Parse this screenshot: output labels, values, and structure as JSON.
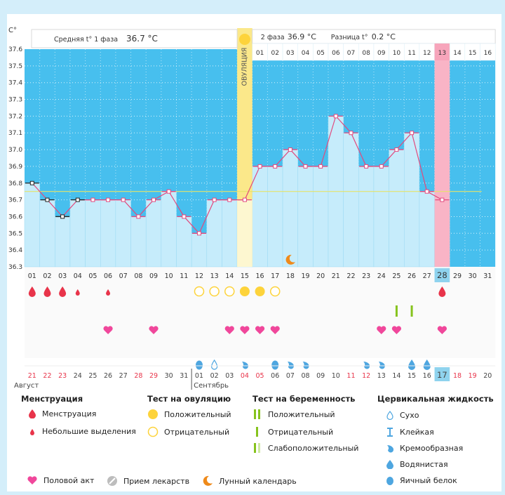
{
  "chart_data": {
    "type": "line",
    "y_unit_label": "C°",
    "ylim": [
      36.3,
      37.6
    ],
    "y_ticks": [
      "37.6",
      "37.5",
      "37.4",
      "37.3",
      "37.2",
      "37.1",
      "37.0",
      "36.9",
      "36.8",
      "36.7",
      "36.6",
      "36.5",
      "36.4",
      "36.3"
    ],
    "phase1_label": "Средняя t° 1 фаза",
    "phase1_value": "36.7 °C",
    "phase2_label": "2 фаза",
    "phase2_value": "36.9 °C",
    "diff_label": "Разница t°",
    "diff_value": "0.2 °C",
    "ovulation_label": "ОВУЛЯЦИЯ",
    "ovulation_day_index": 14,
    "coverline": 36.75,
    "cycle_days": [
      "01",
      "02",
      "03",
      "04",
      "05",
      "06",
      "07",
      "08",
      "09",
      "10",
      "11",
      "12",
      "13",
      "14",
      "15",
      "16",
      "17",
      "18",
      "19",
      "20",
      "21",
      "22",
      "23",
      "24",
      "25",
      "26",
      "27",
      "28",
      "29",
      "30",
      "31"
    ],
    "current_day_index": 27,
    "phase2_days": [
      "01",
      "02",
      "03",
      "04",
      "05",
      "06",
      "07",
      "08",
      "09",
      "10",
      "11",
      "12",
      "13",
      "14",
      "15",
      "16"
    ],
    "phase2_current_index": 12,
    "temperatures": [
      36.8,
      36.7,
      36.6,
      36.7,
      36.7,
      36.7,
      36.7,
      36.6,
      36.7,
      36.75,
      36.6,
      36.5,
      36.7,
      36.7,
      36.7,
      36.9,
      36.9,
      37.0,
      36.9,
      36.9,
      37.2,
      37.1,
      36.9,
      36.9,
      37.0,
      37.1,
      36.75,
      36.7
    ],
    "calendar_dates": [
      "21",
      "22",
      "23",
      "24",
      "25",
      "26",
      "27",
      "28",
      "29",
      "30",
      "31",
      "01",
      "02",
      "03",
      "04",
      "05",
      "06",
      "07",
      "08",
      "09",
      "10",
      "11",
      "12",
      "13",
      "14",
      "15",
      "16",
      "17",
      "18",
      "19",
      "20"
    ],
    "red_date_indices": [
      0,
      1,
      2,
      7,
      8,
      14,
      15,
      21,
      22,
      28,
      29
    ],
    "month1": "Август",
    "month2": "Сентябрь",
    "menstruation": [
      {
        "i": 0,
        "t": "full"
      },
      {
        "i": 1,
        "t": "full"
      },
      {
        "i": 2,
        "t": "full"
      },
      {
        "i": 3,
        "t": "light"
      },
      {
        "i": 5,
        "t": "light"
      },
      {
        "i": 27,
        "t": "full"
      }
    ],
    "ovulation_tests": [
      {
        "i": 11,
        "t": "negative"
      },
      {
        "i": 12,
        "t": "negative"
      },
      {
        "i": 13,
        "t": "negative"
      },
      {
        "i": 14,
        "t": "positive"
      },
      {
        "i": 15,
        "t": "positive"
      },
      {
        "i": 16,
        "t": "negative"
      }
    ],
    "pregnancy_tests": [
      {
        "i": 24,
        "t": "negative"
      },
      {
        "i": 25,
        "t": "negative"
      }
    ],
    "intercourse": [
      5,
      8,
      13,
      14,
      15,
      16,
      23,
      24,
      27
    ],
    "cervical_fluid": [
      {
        "i": 11,
        "t": "eggwhite"
      },
      {
        "i": 12,
        "t": "dry"
      },
      {
        "i": 14,
        "t": "creamy"
      },
      {
        "i": 16,
        "t": "eggwhite"
      },
      {
        "i": 17,
        "t": "creamy"
      },
      {
        "i": 18,
        "t": "creamy"
      },
      {
        "i": 22,
        "t": "creamy"
      },
      {
        "i": 23,
        "t": "creamy"
      },
      {
        "i": 25,
        "t": "watery"
      },
      {
        "i": 26,
        "t": "watery"
      }
    ],
    "moon_day_index": 17
  },
  "legend": {
    "menstruation": {
      "title": "Менструация",
      "full": "Менструация",
      "light": "Небольшие выделения"
    },
    "ovulation": {
      "title": "Тест на овуляцию",
      "positive": "Положительный",
      "negative": "Отрицательный"
    },
    "pregnancy": {
      "title": "Тест на беременность",
      "positive": "Положительный",
      "negative": "Отрицательный",
      "weak": "Слабоположительный"
    },
    "cervical": {
      "title": "Цервикальная жидкость",
      "dry": "Сухо",
      "sticky": "Клейкая",
      "creamy": "Кремообразная",
      "watery": "Водянистая",
      "eggwhite": "Яичный белок"
    },
    "bottom": {
      "intercourse": "Половой акт",
      "meds": "Прием лекарств",
      "moon": "Лунный календарь"
    }
  },
  "colors": {
    "blue": "#47bfee",
    "light_blue": "#c6ecfb",
    "pink_line": "#e24a7e",
    "red": "#e8344a",
    "heart": "#f0479b",
    "yellow": "#fdd33b",
    "green": "#86c31d",
    "drop_blue": "#4ea6e0",
    "moon": "#ef8a1a"
  }
}
